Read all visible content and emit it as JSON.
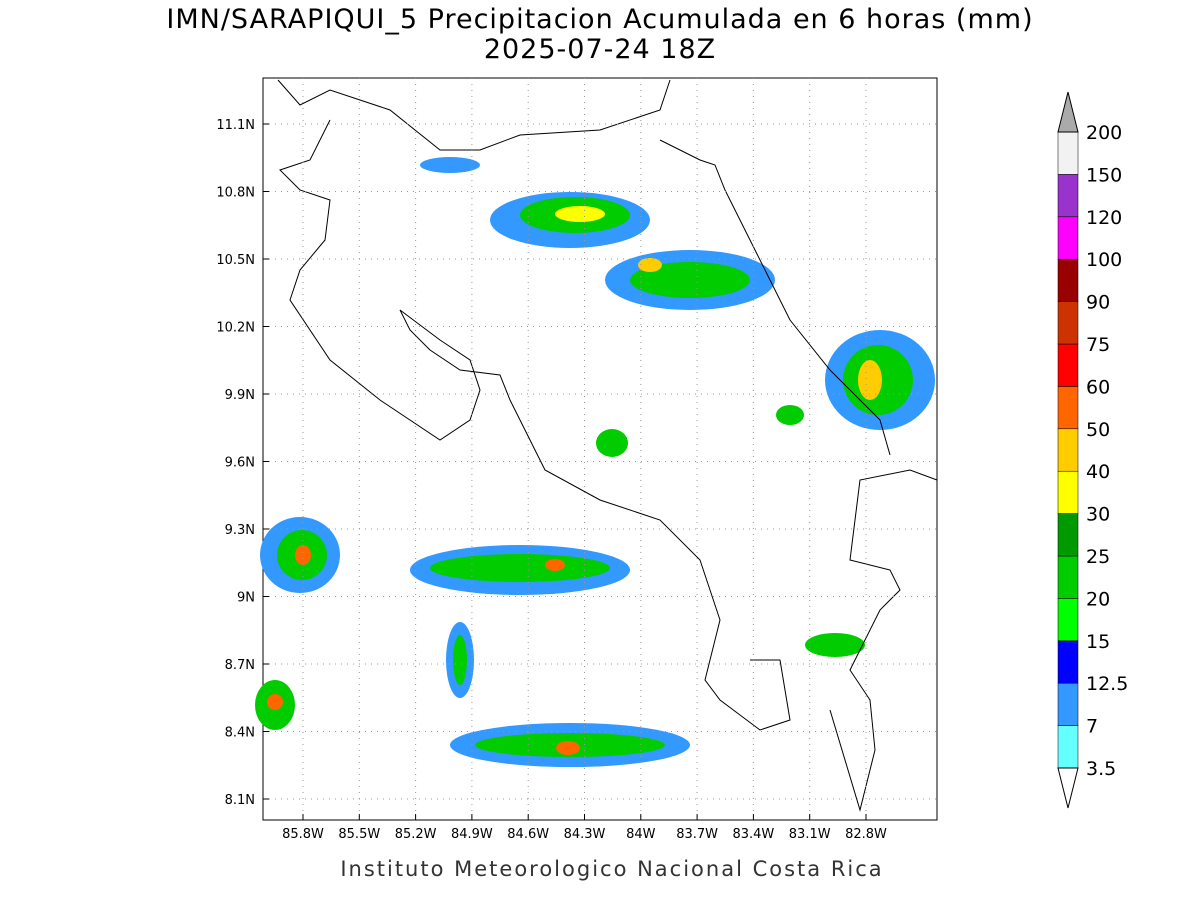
{
  "header": {
    "title": "IMN/SARAPIQUI_5 Precipitacion Acumulada en 6 horas (mm)",
    "subtitle": "2025-07-24 18Z"
  },
  "map": {
    "lat_labels": [
      "11.1N",
      "10.8N",
      "10.5N",
      "10.2N",
      "9.9N",
      "9.6N",
      "9.3N",
      "9N",
      "8.7N",
      "8.4N",
      "8.1N"
    ],
    "lon_labels": [
      "85.8W",
      "85.5W",
      "85.2W",
      "84.9W",
      "84.6W",
      "84.3W",
      "84W",
      "83.7W",
      "83.4W",
      "83.1W",
      "82.8W"
    ]
  },
  "colorbar": {
    "levels": [
      3.5,
      7,
      12.5,
      15,
      20,
      25,
      30,
      40,
      50,
      60,
      75,
      90,
      100,
      120,
      150,
      200
    ],
    "colors": [
      "#66ffff",
      "#3399ff",
      "#0000ff",
      "#00ff00",
      "#00cc00",
      "#009900",
      "#ffff00",
      "#ffcc00",
      "#ff6600",
      "#ff0000",
      "#cc3300",
      "#990000",
      "#ff00ff",
      "#9933cc",
      "#f2f2f2"
    ],
    "below_color": "#ffffff",
    "above_color": "#aaaaaa"
  },
  "footer": "Instituto Meteorologico Nacional Costa Rica"
}
